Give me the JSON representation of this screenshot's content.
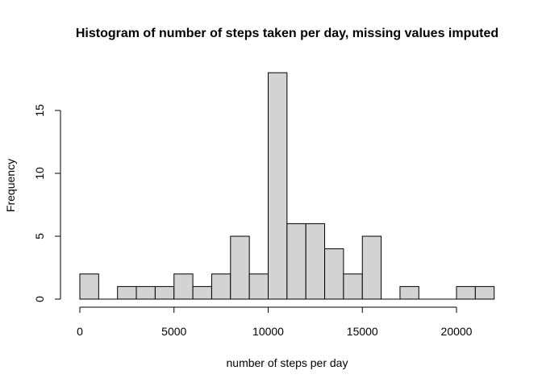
{
  "chart_data": {
    "type": "bar",
    "subtype": "histogram",
    "title": "Histogram of number of steps taken per day, missing values imputed",
    "xlabel": "number of steps per day",
    "ylabel": "Frequency",
    "bin_width": 1000,
    "bins": [
      {
        "start": 0,
        "end": 1000,
        "count": 2
      },
      {
        "start": 1000,
        "end": 2000,
        "count": 0
      },
      {
        "start": 2000,
        "end": 3000,
        "count": 1
      },
      {
        "start": 3000,
        "end": 4000,
        "count": 1
      },
      {
        "start": 4000,
        "end": 5000,
        "count": 1
      },
      {
        "start": 5000,
        "end": 6000,
        "count": 2
      },
      {
        "start": 6000,
        "end": 7000,
        "count": 1
      },
      {
        "start": 7000,
        "end": 8000,
        "count": 2
      },
      {
        "start": 8000,
        "end": 9000,
        "count": 5
      },
      {
        "start": 9000,
        "end": 10000,
        "count": 2
      },
      {
        "start": 10000,
        "end": 11000,
        "count": 18
      },
      {
        "start": 11000,
        "end": 12000,
        "count": 6
      },
      {
        "start": 12000,
        "end": 13000,
        "count": 6
      },
      {
        "start": 13000,
        "end": 14000,
        "count": 4
      },
      {
        "start": 14000,
        "end": 15000,
        "count": 2
      },
      {
        "start": 15000,
        "end": 16000,
        "count": 5
      },
      {
        "start": 16000,
        "end": 17000,
        "count": 0
      },
      {
        "start": 17000,
        "end": 18000,
        "count": 1
      },
      {
        "start": 18000,
        "end": 19000,
        "count": 0
      },
      {
        "start": 19000,
        "end": 20000,
        "count": 0
      },
      {
        "start": 20000,
        "end": 21000,
        "count": 1
      },
      {
        "start": 21000,
        "end": 22000,
        "count": 1
      }
    ],
    "xlim": [
      0,
      22000
    ],
    "ylim": [
      0,
      18
    ],
    "x_ticks": [
      0,
      5000,
      10000,
      15000,
      20000
    ],
    "x_tick_labels": [
      "0",
      "5000",
      "10000",
      "15000",
      "20000"
    ],
    "y_ticks": [
      0,
      5,
      10,
      15
    ],
    "y_tick_labels": [
      "0",
      "5",
      "10",
      "15"
    ],
    "grid": false,
    "bar_fill": "#d3d3d3",
    "bar_stroke": "#000000"
  }
}
